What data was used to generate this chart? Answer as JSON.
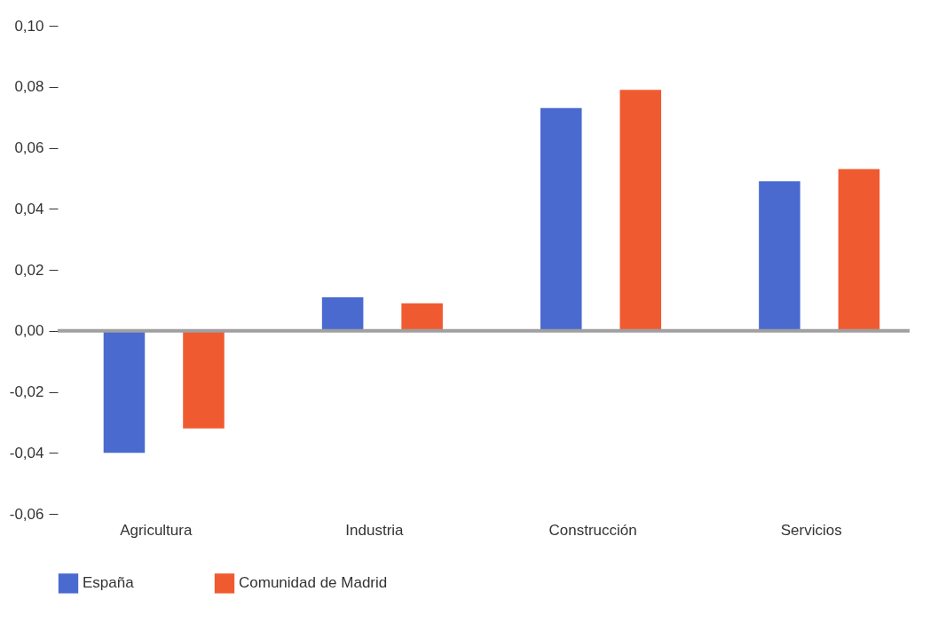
{
  "chart_data": {
    "type": "bar",
    "categories": [
      "Agricultura",
      "Industria",
      "Construcción",
      "Servicios"
    ],
    "series": [
      {
        "name": "España",
        "color": "#4a6ad0",
        "values": [
          -0.04,
          0.011,
          0.073,
          0.049
        ]
      },
      {
        "name": "Comunidad de Madrid",
        "color": "#f05a30",
        "values": [
          -0.032,
          0.009,
          0.079,
          0.053
        ]
      }
    ],
    "ylim": [
      -0.06,
      0.1
    ],
    "yticks": [
      {
        "value": -0.06,
        "label": "-0,06"
      },
      {
        "value": -0.04,
        "label": "-0,04"
      },
      {
        "value": -0.02,
        "label": "-0,02"
      },
      {
        "value": 0,
        "label": "0,00"
      },
      {
        "value": 0.02,
        "label": "0,02"
      },
      {
        "value": 0.04,
        "label": "0,04"
      },
      {
        "value": 0.06,
        "label": "0,06"
      },
      {
        "value": 0.08,
        "label": "0,08"
      },
      {
        "value": 0.1,
        "label": "0,10"
      }
    ],
    "ref_lines": [
      {
        "axis": "y",
        "value": 0,
        "color": "#a0a0a0"
      }
    ],
    "grid": false,
    "legend": "bottom"
  }
}
